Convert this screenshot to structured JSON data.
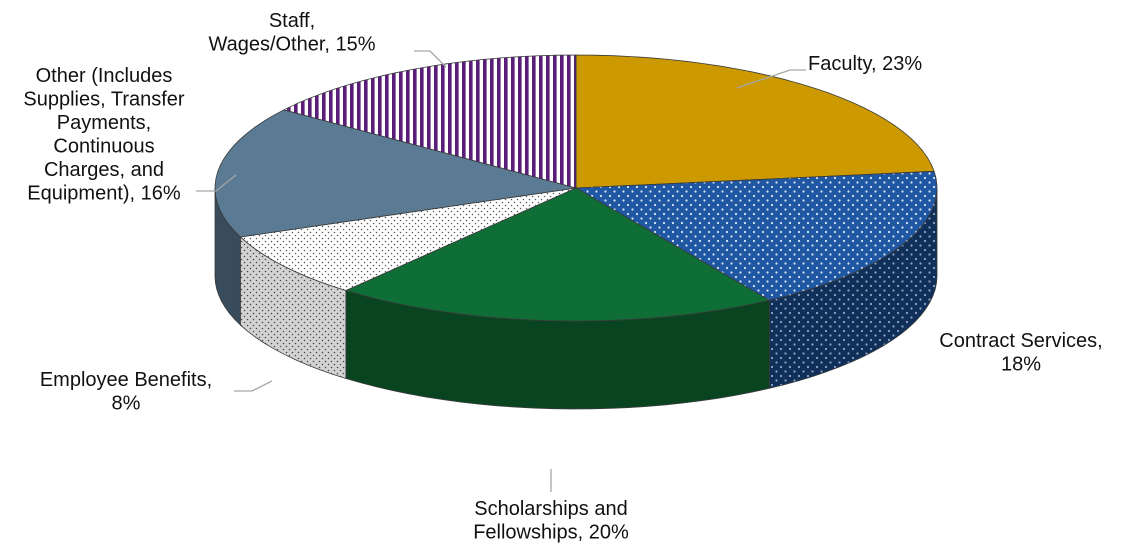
{
  "chart_data": {
    "type": "pie",
    "style": "3d-exploded-perspective",
    "start_angle_deg": 90,
    "direction": "clockwise",
    "slices": [
      {
        "label": "Faculty",
        "value": 23,
        "value_label": "23%",
        "color": "#cc9a00",
        "pattern": "solid",
        "label_lines": [
          "Faculty, 23%"
        ]
      },
      {
        "label": "Contract Services",
        "value": 18,
        "value_label": "18%",
        "color": "#1f57a3",
        "pattern": "dots",
        "label_lines": [
          "Contract Services,",
          "18%"
        ]
      },
      {
        "label": "Scholarships and Fellowships",
        "value": 20,
        "value_label": "20%",
        "color": "#0f6e36",
        "pattern": "solid",
        "label_lines": [
          "Scholarships and",
          "Fellowships, 20%"
        ]
      },
      {
        "label": "Employee Benefits",
        "value": 8,
        "value_label": "8%",
        "color": "#ffffff",
        "pattern": "fine-dots",
        "label_lines": [
          "Employee Benefits,",
          "8%"
        ]
      },
      {
        "label": "Other (Includes Supplies, Transfer Payments, Continuous Charges, and Equipment)",
        "value": 16,
        "value_label": "16%",
        "color": "#5a7b93",
        "pattern": "solid",
        "label_lines": [
          "Other (Includes",
          "Supplies, Transfer",
          "Payments,",
          "Continuous",
          "Charges, and",
          "Equipment), 16%"
        ]
      },
      {
        "label": "Staff, Wages/Other",
        "value": 15,
        "value_label": "15%",
        "color": "#5b1d7a",
        "pattern": "vertical-stripes",
        "label_lines": [
          "Staff,",
          "Wages/Other, 15%"
        ]
      }
    ],
    "title": "",
    "legend": "none"
  }
}
